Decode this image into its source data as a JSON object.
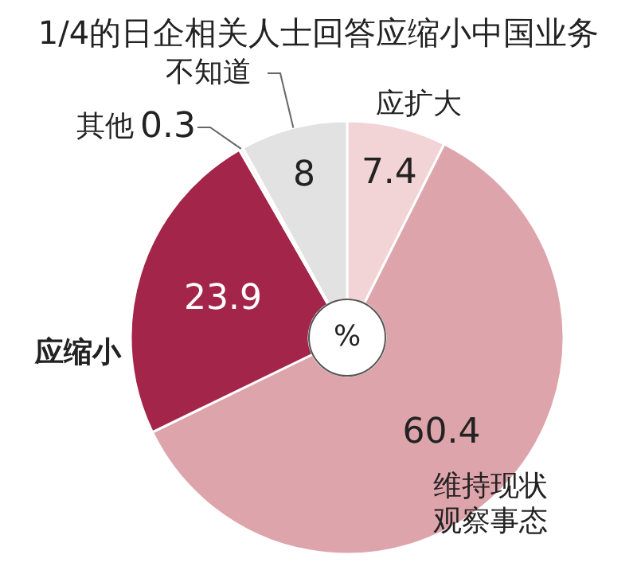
{
  "chart_data": {
    "type": "donut",
    "title": "1/4的日企相关人士回答应缩小中国业务",
    "categories": [
      "应扩大",
      "维持现状观察事态",
      "应缩小",
      "其他",
      "不知道"
    ],
    "values": [
      7.4,
      60.4,
      23.9,
      0.3,
      8
    ],
    "colors": [
      "#f2d3d6",
      "#dea4ab",
      "#a32549",
      "#f4f4f4",
      "#e2e2e2"
    ],
    "data_labels": true,
    "annotations": [
      "%"
    ]
  }
}
